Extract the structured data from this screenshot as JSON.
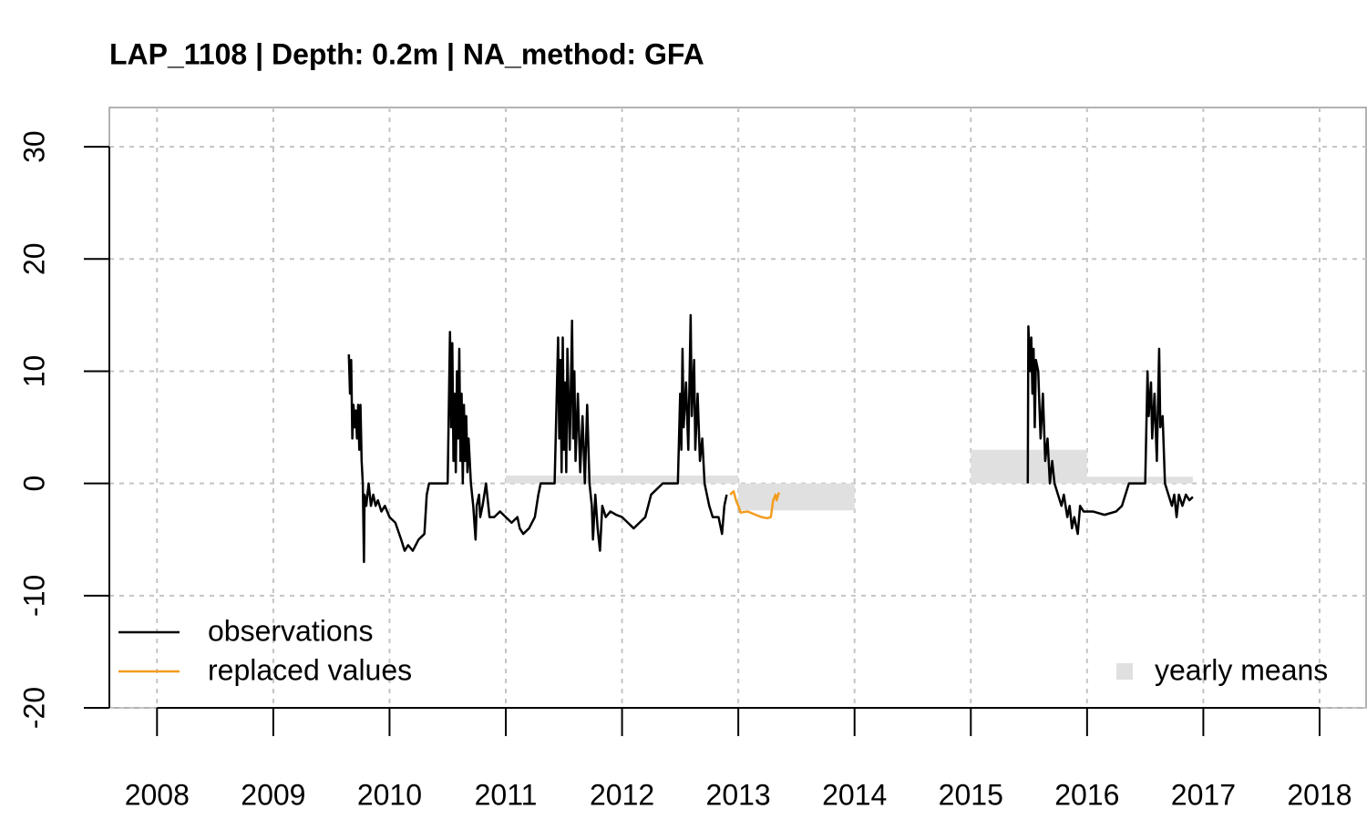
{
  "chart_data": {
    "type": "line",
    "title": "LAP_1108 | Depth: 0.2m | NA_method: GFA",
    "xlim": [
      2007.59,
      2018.4
    ],
    "ylim": [
      -20,
      33.5
    ],
    "xticks": [
      2008,
      2009,
      2010,
      2011,
      2012,
      2013,
      2014,
      2015,
      2016,
      2017,
      2018
    ],
    "yticks": [
      -20,
      -10,
      0,
      10,
      20,
      30
    ],
    "grid": true,
    "series": [
      {
        "name": "observations",
        "color": "#000000",
        "x": [
          2009.65,
          2009.66,
          2009.67,
          2009.68,
          2009.69,
          2009.7,
          2009.71,
          2009.72,
          2009.73,
          2009.74,
          2009.75,
          2009.76,
          2009.77,
          2009.78,
          2009.785,
          2009.8,
          2009.82,
          2009.84,
          2009.86,
          2009.88,
          2009.9,
          2009.93,
          2009.96,
          2010.0,
          2010.05,
          2010.1,
          2010.13,
          2010.16,
          2010.2,
          2010.25,
          2010.3,
          2010.32,
          2010.34,
          2010.5,
          2010.52,
          2010.53,
          2010.54,
          2010.55,
          2010.56,
          2010.57,
          2010.58,
          2010.59,
          2010.6,
          2010.61,
          2010.62,
          2010.63,
          2010.64,
          2010.65,
          2010.66,
          2010.67,
          2010.68,
          2010.7,
          2010.72,
          2010.74,
          2010.75,
          2010.77,
          2010.78,
          2010.8,
          2010.83,
          2010.86,
          2010.9,
          2010.95,
          2011.0,
          2011.05,
          2011.1,
          2011.12,
          2011.15,
          2011.2,
          2011.25,
          2011.28,
          2011.3,
          2011.35,
          2011.42,
          2011.45,
          2011.46,
          2011.47,
          2011.48,
          2011.49,
          2011.5,
          2011.51,
          2011.52,
          2011.53,
          2011.55,
          2011.57,
          2011.58,
          2011.59,
          2011.6,
          2011.62,
          2011.64,
          2011.66,
          2011.68,
          2011.7,
          2011.72,
          2011.74,
          2011.75,
          2011.77,
          2011.79,
          2011.81,
          2011.83,
          2011.86,
          2011.9,
          2011.95,
          2012.0,
          2012.05,
          2012.1,
          2012.15,
          2012.2,
          2012.25,
          2012.35,
          2012.48,
          2012.5,
          2012.51,
          2012.52,
          2012.53,
          2012.55,
          2012.57,
          2012.59,
          2012.6,
          2012.62,
          2012.63,
          2012.65,
          2012.67,
          2012.69,
          2012.71,
          2012.73,
          2012.75,
          2012.78,
          2012.83,
          2012.86,
          2012.88,
          2012.9,
          2014.0,
          2015.49,
          2015.495,
          2015.51,
          2015.52,
          2015.53,
          2015.54,
          2015.55,
          2015.56,
          2015.58,
          2015.6,
          2015.62,
          2015.64,
          2015.66,
          2015.68,
          2015.7,
          2015.72,
          2015.75,
          2015.78,
          2015.8,
          2015.83,
          2015.85,
          2015.87,
          2015.89,
          2015.92,
          2015.94,
          2015.97,
          2016.05,
          2016.15,
          2016.25,
          2016.3,
          2016.36,
          2016.5,
          2016.52,
          2016.53,
          2016.55,
          2016.56,
          2016.58,
          2016.6,
          2016.62,
          2016.63,
          2016.65,
          2016.67,
          2016.7,
          2016.73,
          2016.75,
          2016.77,
          2016.79,
          2016.82,
          2016.85,
          2016.88,
          2016.91
        ],
        "values": [
          11.5,
          8,
          11,
          4,
          7,
          5,
          6.5,
          4,
          7,
          3,
          7,
          2,
          0,
          -7,
          -1,
          -2,
          0,
          -2,
          -1,
          -2,
          -1.5,
          -2.5,
          -2,
          -3,
          -3.5,
          -5,
          -6,
          -5.5,
          -6,
          -5,
          -4.5,
          -1,
          0,
          0,
          13.5,
          5,
          12.5,
          2,
          8,
          1,
          10,
          4,
          12,
          2,
          8,
          0,
          7,
          2,
          6,
          1,
          4,
          0,
          -2,
          -5,
          -2,
          -1,
          -3,
          -2,
          0,
          -3,
          -3,
          -2.5,
          -3,
          -3.5,
          -3,
          -4,
          -4.5,
          -4,
          -3,
          -1,
          0,
          0,
          0,
          13,
          4,
          11,
          1,
          13,
          3,
          9,
          1,
          12,
          3,
          14.5,
          4,
          10,
          2,
          8,
          1,
          6,
          0,
          7,
          0,
          -2,
          -5,
          -1,
          -4,
          -6,
          -2,
          -3,
          -2.5,
          -2.8,
          -3,
          -3.5,
          -4,
          -3.5,
          -3,
          -1,
          0,
          0,
          8,
          3,
          12,
          5,
          9,
          3,
          15,
          6,
          11,
          3,
          8,
          2,
          4,
          0,
          -1,
          -2,
          -3,
          -3,
          -4.5,
          -2,
          -1,
          null,
          0,
          14,
          10,
          13,
          8,
          12,
          5,
          11,
          10,
          4,
          8,
          2,
          4,
          0,
          2,
          0,
          -1,
          -2,
          -1,
          -3,
          -2,
          -4,
          -3,
          -4.5,
          -2,
          -2.5,
          -2.5,
          -2.8,
          -2.5,
          -2,
          0,
          0,
          10,
          6,
          9,
          4,
          8,
          2,
          12,
          5,
          6,
          0,
          -1,
          -2,
          -1,
          -3,
          -1,
          -2,
          -1,
          -1.5,
          -1.2
        ]
      },
      {
        "name": "replaced values",
        "color": "#f39c1e",
        "x": [
          2012.93,
          2012.96,
          2012.98,
          2013.0,
          2013.02,
          2013.08,
          2013.15,
          2013.2,
          2013.25,
          2013.28,
          2013.3,
          2013.32,
          2013.33,
          2013.35
        ],
        "values": [
          -1,
          -0.7,
          -1.5,
          -2,
          -2.6,
          -2.5,
          -2.8,
          -3.0,
          -3.1,
          -3,
          -1.5,
          -1,
          -1.5,
          -0.8
        ]
      },
      {
        "name": "yearly means",
        "color": "#e0e0e0",
        "type": "bar",
        "x_start": [
          2011,
          2012,
          2013,
          2015,
          2016
        ],
        "x_end": [
          2012,
          2013,
          2014,
          2016,
          2016.91
        ],
        "values": [
          0.7,
          0.7,
          -2.4,
          3.0,
          0.6
        ]
      }
    ]
  }
}
